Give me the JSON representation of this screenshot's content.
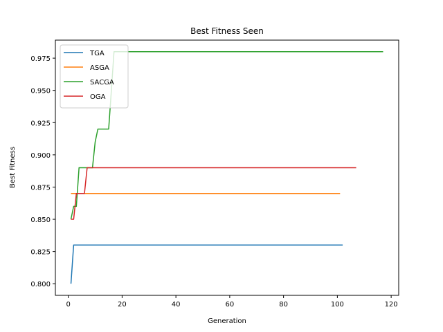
{
  "chart_data": {
    "type": "line",
    "title": "Best Fitness Seen",
    "xlabel": "Generation",
    "ylabel": "Best Fitness",
    "xlim": [
      -4.8,
      122.8
    ],
    "ylim": [
      0.791,
      0.989
    ],
    "xticks": [
      0,
      20,
      40,
      60,
      80,
      100,
      120
    ],
    "yticks": [
      0.8,
      0.825,
      0.85,
      0.875,
      0.9,
      0.925,
      0.95,
      0.975
    ],
    "x_tick_labels": [
      "0",
      "20",
      "40",
      "60",
      "80",
      "100",
      "120"
    ],
    "y_tick_labels": [
      "0.800",
      "0.825",
      "0.850",
      "0.875",
      "0.900",
      "0.925",
      "0.950",
      "0.975"
    ],
    "grid": false,
    "legend_position": "top-left",
    "series": [
      {
        "name": "TGA",
        "color": "#1f77b4",
        "points": [
          [
            1,
            0.8
          ],
          [
            2,
            0.83
          ],
          [
            102,
            0.83
          ]
        ]
      },
      {
        "name": "ASGA",
        "color": "#ff7f0e",
        "points": [
          [
            1,
            0.87
          ],
          [
            101,
            0.87
          ]
        ]
      },
      {
        "name": "SACGA",
        "color": "#2ca02c",
        "points": [
          [
            1,
            0.85
          ],
          [
            2,
            0.86
          ],
          [
            3,
            0.86
          ],
          [
            4,
            0.89
          ],
          [
            9,
            0.89
          ],
          [
            10,
            0.91
          ],
          [
            11,
            0.92
          ],
          [
            15,
            0.92
          ],
          [
            16,
            0.95
          ],
          [
            17,
            0.98
          ],
          [
            117,
            0.98
          ]
        ]
      },
      {
        "name": "OGA",
        "color": "#d62728",
        "points": [
          [
            1,
            0.85
          ],
          [
            2,
            0.85
          ],
          [
            3,
            0.87
          ],
          [
            6,
            0.87
          ],
          [
            7,
            0.89
          ],
          [
            107,
            0.89
          ]
        ]
      }
    ]
  }
}
